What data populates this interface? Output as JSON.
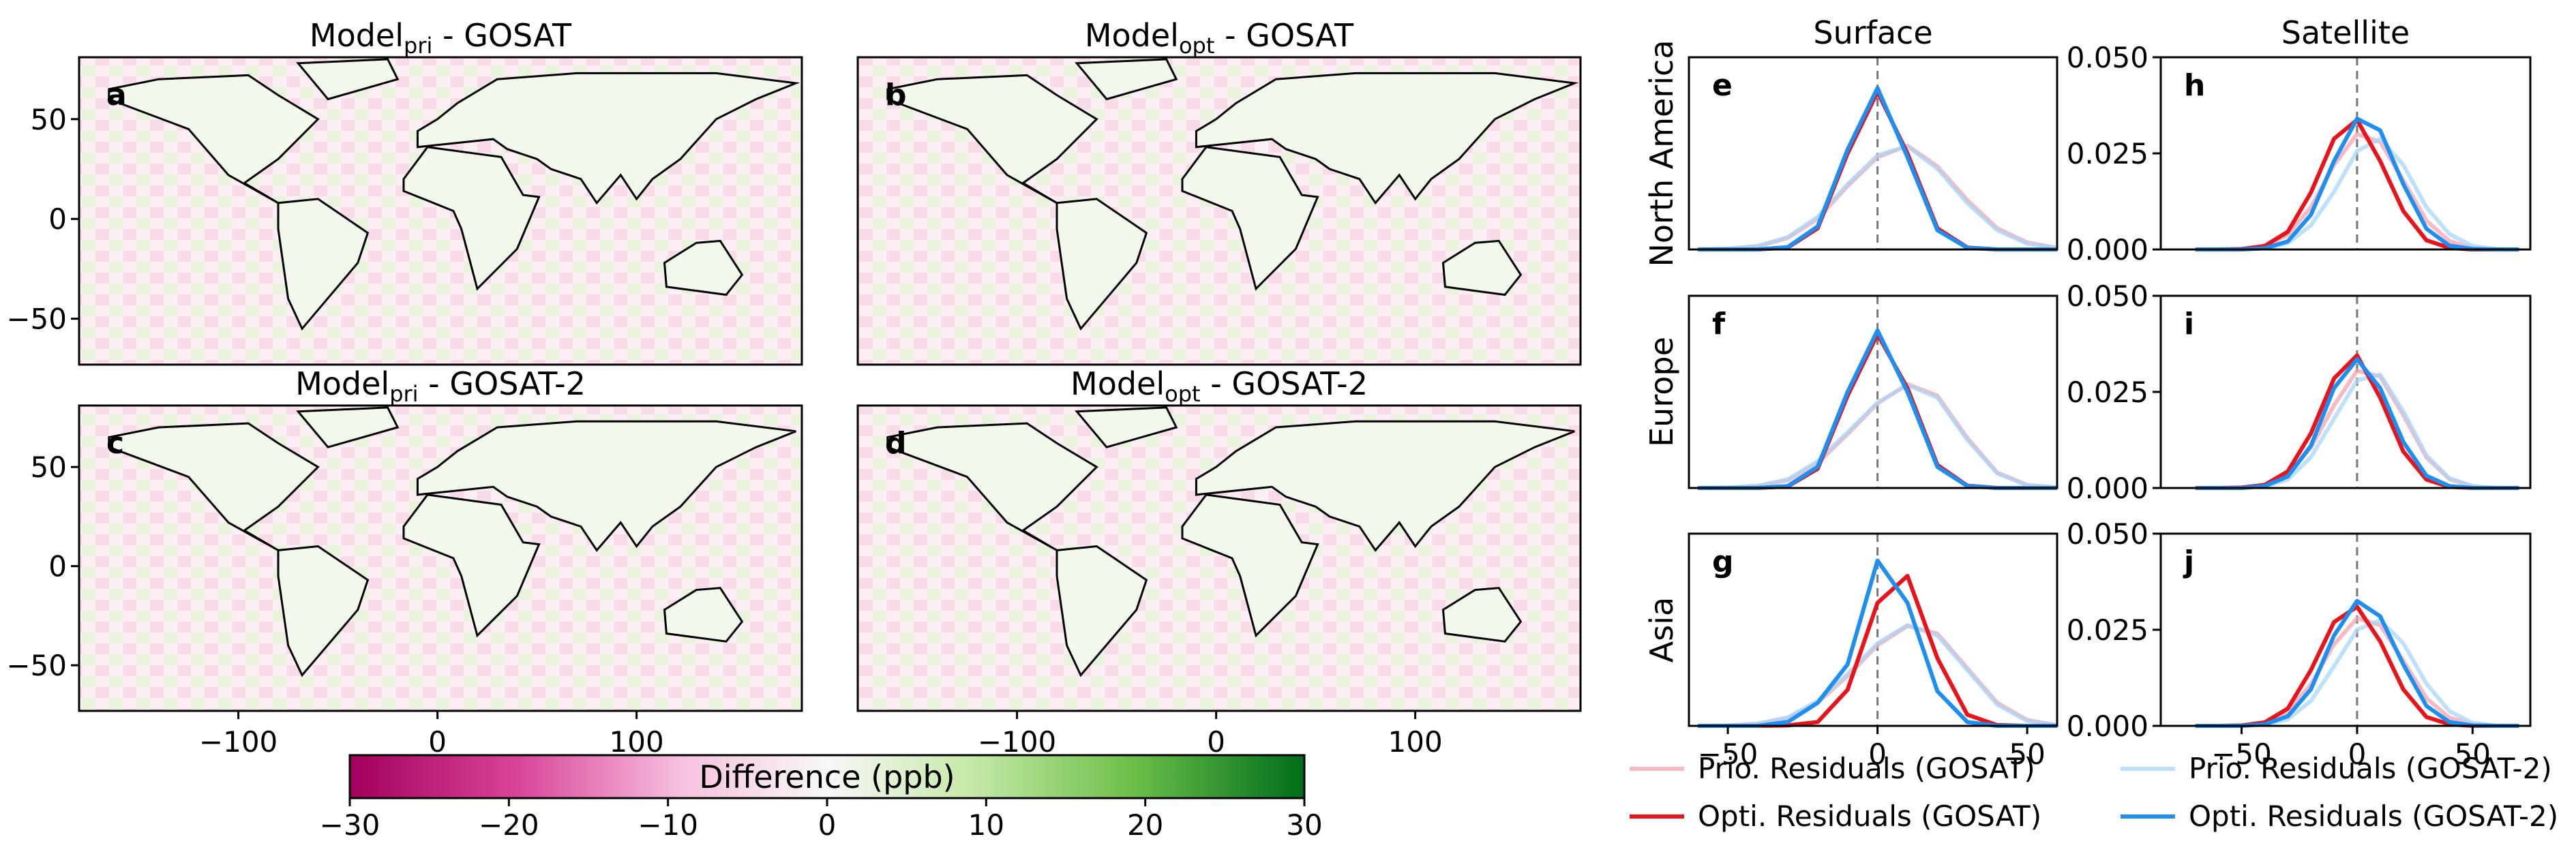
{
  "chart_data": [
    {
      "type": "map",
      "panel": "a",
      "title": {
        "base": "Model",
        "sub": "pri",
        "rest": " - GOSAT"
      },
      "xlim": [
        -180,
        183
      ],
      "ylim": [
        -73,
        81
      ],
      "yticks": [
        {
          "value": 50,
          "label": "50"
        },
        {
          "value": 0,
          "label": "0"
        },
        {
          "value": -50,
          "label": "−50"
        }
      ]
    },
    {
      "type": "map",
      "panel": "b",
      "title": {
        "base": "Model",
        "sub": "opt",
        "rest": " - GOSAT"
      },
      "xlim": [
        -180,
        183
      ],
      "ylim": [
        -73,
        81
      ]
    },
    {
      "type": "map",
      "panel": "c",
      "title": {
        "base": "Model",
        "sub": "pri",
        "rest": " - GOSAT-2"
      },
      "xlim": [
        -180,
        183
      ],
      "ylim": [
        -73,
        81
      ],
      "yticks": [
        {
          "value": 50,
          "label": "50"
        },
        {
          "value": 0,
          "label": "0"
        },
        {
          "value": -50,
          "label": "−50"
        }
      ],
      "xticks": [
        {
          "value": -100,
          "label": "−100"
        },
        {
          "value": 0,
          "label": "0"
        },
        {
          "value": 100,
          "label": "100"
        }
      ]
    },
    {
      "type": "map",
      "panel": "d",
      "title": {
        "base": "Model",
        "sub": "opt",
        "rest": " - GOSAT-2"
      },
      "xlim": [
        -180,
        183
      ],
      "ylim": [
        -73,
        81
      ],
      "xticks": [
        {
          "value": -100,
          "label": "−100"
        },
        {
          "value": 0,
          "label": "0"
        },
        {
          "value": 100,
          "label": "100"
        }
      ]
    },
    {
      "type": "colorbar",
      "label": "Difference (ppb)",
      "lim": [
        -30,
        30
      ],
      "ticks": [
        {
          "value": -30,
          "label": "−30"
        },
        {
          "value": -20,
          "label": "−20"
        },
        {
          "value": -10,
          "label": "−10"
        },
        {
          "value": 0,
          "label": "0"
        },
        {
          "value": 10,
          "label": "10"
        },
        {
          "value": 20,
          "label": "20"
        },
        {
          "value": 30,
          "label": "30"
        }
      ]
    },
    {
      "type": "line",
      "panel": "e",
      "column_title": "Surface",
      "row_label": "North America",
      "col": 0,
      "row": 0,
      "xlim": [
        -63,
        60
      ],
      "ylim": [
        0,
        0.05
      ],
      "reference_line": 0,
      "x": [
        -60,
        -50,
        -40,
        -30,
        -20,
        -10,
        0,
        10,
        20,
        30,
        40,
        50,
        60
      ],
      "series": [
        {
          "name": "Prio. Residuals (GOSAT)",
          "color": "#f4a3ad",
          "values": [
            0,
            0.0002,
            0.0008,
            0.003,
            0.008,
            0.0165,
            0.024,
            0.027,
            0.0216,
            0.0128,
            0.0055,
            0.0018,
            0.0004
          ]
        },
        {
          "name": "Prio. Residuals (GOSAT-2)",
          "color": "#a9d5f7",
          "values": [
            0,
            0.0002,
            0.0009,
            0.0032,
            0.0085,
            0.017,
            0.0245,
            0.0268,
            0.021,
            0.012,
            0.005,
            0.0015,
            0.0003
          ]
        },
        {
          "name": "Opti. Residuals (GOSAT)",
          "color": "#e8131b",
          "values": [
            0,
            0,
            0,
            0.0005,
            0.0055,
            0.025,
            0.041,
            0.025,
            0.0055,
            0.0005,
            0,
            0,
            0
          ]
        },
        {
          "name": "Opti. Residuals (GOSAT-2)",
          "color": "#1e8ff0",
          "values": [
            0,
            0,
            0,
            0.0006,
            0.006,
            0.026,
            0.042,
            0.024,
            0.005,
            0.0004,
            0,
            0,
            0
          ]
        }
      ]
    },
    {
      "type": "line",
      "panel": "f",
      "row_label": "Europe",
      "col": 0,
      "row": 1,
      "xlim": [
        -63,
        60
      ],
      "ylim": [
        0,
        0.05
      ],
      "reference_line": 0,
      "x": [
        -60,
        -50,
        -40,
        -30,
        -20,
        -10,
        0,
        10,
        20,
        30,
        40,
        50,
        60
      ],
      "series": [
        {
          "color": "#f4a3ad",
          "values": [
            0,
            0.0001,
            0.0005,
            0.002,
            0.0065,
            0.014,
            0.022,
            0.027,
            0.024,
            0.013,
            0.004,
            0.0008,
            0.0001
          ]
        },
        {
          "color": "#a9d5f7",
          "values": [
            0,
            0.0001,
            0.0006,
            0.0022,
            0.007,
            0.0145,
            0.0222,
            0.0268,
            0.0235,
            0.0125,
            0.0038,
            0.0007,
            0.0001
          ]
        },
        {
          "color": "#e8131b",
          "values": [
            0,
            0,
            0,
            0.0004,
            0.005,
            0.024,
            0.04,
            0.026,
            0.006,
            0.0006,
            0,
            0,
            0
          ]
        },
        {
          "color": "#1e8ff0",
          "values": [
            0,
            0,
            0,
            0.0005,
            0.0055,
            0.025,
            0.041,
            0.025,
            0.0055,
            0.0005,
            0,
            0,
            0
          ]
        }
      ]
    },
    {
      "type": "line",
      "panel": "g",
      "row_label": "Asia",
      "col": 0,
      "row": 2,
      "xlim": [
        -63,
        60
      ],
      "ylim": [
        0,
        0.05
      ],
      "reference_line": 0,
      "xticks": [
        {
          "value": -50,
          "label": "−50"
        },
        {
          "value": 0,
          "label": "0"
        },
        {
          "value": 50,
          "label": "50"
        }
      ],
      "x": [
        -60,
        -50,
        -40,
        -30,
        -20,
        -10,
        0,
        10,
        20,
        30,
        40,
        50,
        60
      ],
      "series": [
        {
          "color": "#f4a3ad",
          "values": [
            0,
            0.0001,
            0.0005,
            0.002,
            0.006,
            0.013,
            0.021,
            0.026,
            0.024,
            0.015,
            0.006,
            0.0015,
            0.0002
          ]
        },
        {
          "color": "#a9d5f7",
          "values": [
            0,
            0.0001,
            0.0006,
            0.0022,
            0.0065,
            0.0135,
            0.0215,
            0.0262,
            0.0235,
            0.0145,
            0.0055,
            0.0013,
            0.0002
          ]
        },
        {
          "color": "#e8131b",
          "values": [
            0,
            0,
            0,
            0.0001,
            0.001,
            0.0094,
            0.032,
            0.039,
            0.0176,
            0.0029,
            0.0002,
            0,
            0
          ]
        },
        {
          "color": "#1e8ff0",
          "values": [
            0,
            0,
            0,
            0.001,
            0.006,
            0.016,
            0.043,
            0.032,
            0.009,
            0.001,
            0,
            0,
            0
          ]
        }
      ]
    },
    {
      "type": "line",
      "panel": "h",
      "column_title": "Satellite",
      "col": 1,
      "row": 0,
      "xlim": [
        -85,
        75
      ],
      "ylim": [
        0,
        0.05
      ],
      "reference_line": 0,
      "yticks": [
        {
          "value": 0,
          "label": "0.000"
        },
        {
          "value": 0.025,
          "label": "0.025"
        },
        {
          "value": 0.05,
          "label": "0.050"
        }
      ],
      "x": [
        -70,
        -60,
        -50,
        -40,
        -30,
        -20,
        -10,
        0,
        10,
        20,
        30,
        40,
        50,
        60,
        70
      ],
      "series": [
        {
          "color": "#f4a3ad",
          "values": [
            0,
            0,
            0.0001,
            0.0008,
            0.0038,
            0.011,
            0.022,
            0.03,
            0.028,
            0.018,
            0.0075,
            0.0022,
            0.0004,
            0,
            0
          ]
        },
        {
          "color": "#a9d5f7",
          "values": [
            0,
            0,
            0,
            0.0003,
            0.0016,
            0.0063,
            0.015,
            0.0256,
            0.0288,
            0.022,
            0.011,
            0.004,
            0.0009,
            0.0001,
            0
          ]
        },
        {
          "color": "#e8131b",
          "values": [
            0,
            0,
            0.0001,
            0.0009,
            0.0046,
            0.0148,
            0.0288,
            0.0337,
            0.023,
            0.01,
            0.0024,
            0.0004,
            0,
            0,
            0
          ]
        },
        {
          "color": "#1e8ff0",
          "values": [
            0,
            0,
            0,
            0.0003,
            0.0021,
            0.009,
            0.023,
            0.034,
            0.031,
            0.017,
            0.0054,
            0.001,
            0.0001,
            0,
            0
          ]
        }
      ]
    },
    {
      "type": "line",
      "panel": "i",
      "col": 1,
      "row": 1,
      "xlim": [
        -85,
        75
      ],
      "ylim": [
        0,
        0.05
      ],
      "reference_line": 0,
      "yticks": [
        {
          "value": 0,
          "label": "0.000"
        },
        {
          "value": 0.025,
          "label": "0.025"
        },
        {
          "value": 0.05,
          "label": "0.050"
        }
      ],
      "x": [
        -70,
        -60,
        -50,
        -40,
        -30,
        -20,
        -10,
        0,
        10,
        20,
        30,
        40,
        50,
        60,
        70
      ],
      "series": [
        {
          "color": "#f4a3ad",
          "values": [
            0,
            0,
            0.0001,
            0.0007,
            0.0035,
            0.0105,
            0.0215,
            0.0305,
            0.029,
            0.019,
            0.008,
            0.0023,
            0.0004,
            0,
            0
          ]
        },
        {
          "color": "#a9d5f7",
          "values": [
            0,
            0,
            0,
            0.0004,
            0.0022,
            0.008,
            0.018,
            0.028,
            0.0295,
            0.02,
            0.0085,
            0.0025,
            0.0005,
            0,
            0
          ]
        },
        {
          "color": "#e8131b",
          "values": [
            0,
            0,
            0.0001,
            0.0008,
            0.0043,
            0.0142,
            0.0285,
            0.0345,
            0.0235,
            0.0095,
            0.0022,
            0.0003,
            0,
            0,
            0
          ]
        },
        {
          "color": "#1e8ff0",
          "values": [
            0,
            0,
            0,
            0.0005,
            0.003,
            0.011,
            0.026,
            0.0335,
            0.026,
            0.012,
            0.0032,
            0.0005,
            0,
            0,
            0
          ]
        }
      ]
    },
    {
      "type": "line",
      "panel": "j",
      "col": 1,
      "row": 2,
      "xlim": [
        -85,
        75
      ],
      "ylim": [
        0,
        0.05
      ],
      "reference_line": 0,
      "yticks": [
        {
          "value": 0,
          "label": "0.000"
        },
        {
          "value": 0.025,
          "label": "0.025"
        },
        {
          "value": 0.05,
          "label": "0.050"
        }
      ],
      "xticks": [
        {
          "value": -50,
          "label": "−50"
        },
        {
          "value": 0,
          "label": "0"
        },
        {
          "value": 50,
          "label": "50"
        }
      ],
      "x": [
        -70,
        -60,
        -50,
        -40,
        -30,
        -20,
        -10,
        0,
        10,
        20,
        30,
        40,
        50,
        60,
        70
      ],
      "series": [
        {
          "color": "#f4a3ad",
          "values": [
            0,
            0,
            0.0001,
            0.0008,
            0.0037,
            0.0108,
            0.0212,
            0.028,
            0.0262,
            0.017,
            0.0072,
            0.0021,
            0.0004,
            0,
            0
          ]
        },
        {
          "color": "#a9d5f7",
          "values": [
            0,
            0,
            0,
            0.0003,
            0.0017,
            0.0065,
            0.0155,
            0.025,
            0.0275,
            0.0215,
            0.011,
            0.0038,
            0.0008,
            0.0001,
            0
          ]
        },
        {
          "color": "#e8131b",
          "values": [
            0,
            0,
            0.0001,
            0.0009,
            0.0045,
            0.0145,
            0.027,
            0.031,
            0.022,
            0.0095,
            0.0023,
            0.0004,
            0,
            0,
            0
          ]
        },
        {
          "color": "#1e8ff0",
          "values": [
            0,
            0,
            0,
            0.0004,
            0.0025,
            0.0095,
            0.0235,
            0.0325,
            0.0285,
            0.016,
            0.0052,
            0.001,
            0.0001,
            0,
            0
          ]
        }
      ]
    }
  ]
}
